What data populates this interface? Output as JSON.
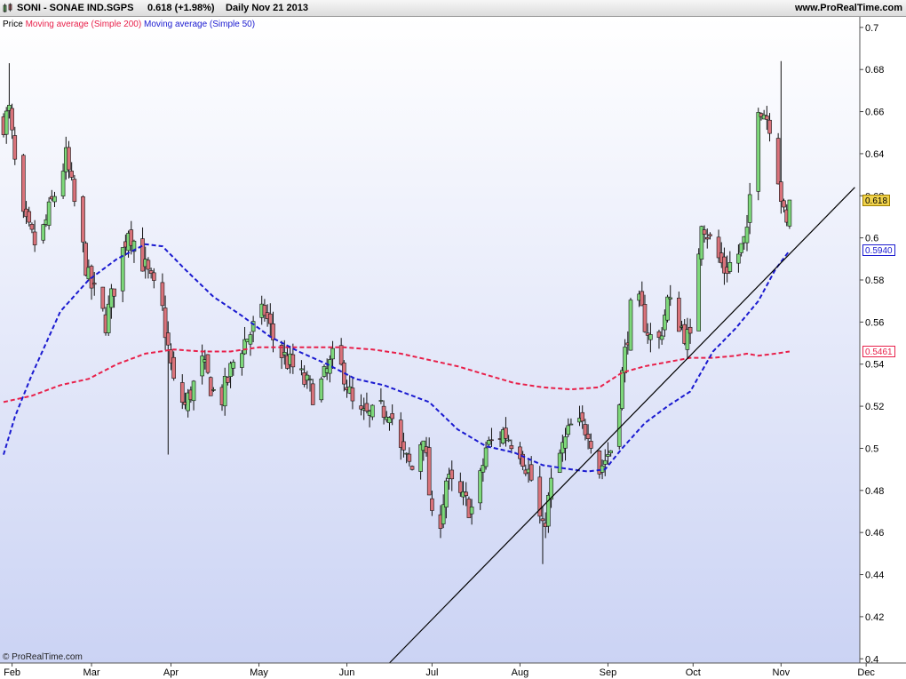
{
  "header": {
    "symbol": "SONI - SONAE IND.SGPS",
    "quote": "0.618 (+1.98%)",
    "period": "Daily  Nov 21 2013",
    "site": "www.ProRealTime.com"
  },
  "legend": {
    "price": "Price",
    "ma200": "Moving average (Simple 200)",
    "ma50": "Moving average (Simple 50)"
  },
  "watermark": "© ProRealTime.com",
  "colors": {
    "up": "#7dd87a",
    "down": "#d9727a",
    "ma200": "#e8204a",
    "ma50": "#1a1ad0",
    "trend": "#000000"
  },
  "tags": {
    "last": {
      "text": "0.618",
      "value": 0.618,
      "bg": "#f0d24a",
      "border": "#a08000"
    },
    "ma50": {
      "text": "0.5940",
      "value": 0.594,
      "bg": "#ffffff",
      "border": "#1a1ad0"
    },
    "ma200": {
      "text": "0.5461",
      "value": 0.5461,
      "bg": "#ffffff",
      "border": "#e8204a"
    }
  },
  "chart_data": {
    "type": "candlestick",
    "ylim": [
      0.398,
      0.705
    ],
    "y_ticks": [
      0.4,
      0.42,
      0.44,
      0.46,
      0.48,
      0.5,
      0.52,
      0.54,
      0.56,
      0.58,
      0.6,
      0.62,
      0.64,
      0.66,
      0.68,
      0.7
    ],
    "y_tick_labels": [
      "0.4",
      "0.42",
      "0.44",
      "0.46",
      "0.48",
      "0.5",
      "0.52",
      "0.54",
      "0.56",
      "0.58",
      "0.6",
      "0.62",
      "0.64",
      "0.66",
      "0.68",
      "0.7"
    ],
    "x_ticks": [
      {
        "label": "Feb",
        "day": 3
      },
      {
        "label": "Mar",
        "day": 31
      },
      {
        "label": "Apr",
        "day": 59
      },
      {
        "label": "May",
        "day": 90
      },
      {
        "label": "Jun",
        "day": 121
      },
      {
        "label": "Jul",
        "day": 151
      },
      {
        "label": "Aug",
        "day": 182
      },
      {
        "label": "Sep",
        "day": 213
      },
      {
        "label": "Oct",
        "day": 243
      },
      {
        "label": "Nov",
        "day": 274
      },
      {
        "label": "Dec",
        "day": 304
      }
    ],
    "candle_anchors": [
      {
        "day": 0,
        "close": 0.655
      },
      {
        "day": 2,
        "close": 0.66
      },
      {
        "day": 6,
        "close": 0.61
      },
      {
        "day": 12,
        "close": 0.595
      },
      {
        "day": 22,
        "close": 0.638
      },
      {
        "day": 30,
        "close": 0.58
      },
      {
        "day": 36,
        "close": 0.56
      },
      {
        "day": 44,
        "close": 0.605
      },
      {
        "day": 48,
        "close": 0.592
      },
      {
        "day": 56,
        "close": 0.565
      },
      {
        "day": 60,
        "close": 0.53
      },
      {
        "day": 64,
        "close": 0.52
      },
      {
        "day": 70,
        "close": 0.54
      },
      {
        "day": 76,
        "close": 0.52
      },
      {
        "day": 82,
        "close": 0.545
      },
      {
        "day": 92,
        "close": 0.565
      },
      {
        "day": 96,
        "close": 0.548
      },
      {
        "day": 104,
        "close": 0.535
      },
      {
        "day": 110,
        "close": 0.525
      },
      {
        "day": 116,
        "close": 0.542
      },
      {
        "day": 120,
        "close": 0.536
      },
      {
        "day": 124,
        "close": 0.515
      },
      {
        "day": 130,
        "close": 0.515
      },
      {
        "day": 136,
        "close": 0.52
      },
      {
        "day": 140,
        "close": 0.498
      },
      {
        "day": 144,
        "close": 0.49
      },
      {
        "day": 148,
        "close": 0.508
      },
      {
        "day": 152,
        "close": 0.45
      },
      {
        "day": 156,
        "close": 0.485
      },
      {
        "day": 162,
        "close": 0.475
      },
      {
        "day": 166,
        "close": 0.47
      },
      {
        "day": 170,
        "close": 0.5
      },
      {
        "day": 176,
        "close": 0.508
      },
      {
        "day": 182,
        "close": 0.5
      },
      {
        "day": 186,
        "close": 0.485
      },
      {
        "day": 190,
        "close": 0.46
      },
      {
        "day": 194,
        "close": 0.49
      },
      {
        "day": 200,
        "close": 0.51
      },
      {
        "day": 206,
        "close": 0.51
      },
      {
        "day": 210,
        "close": 0.49
      },
      {
        "day": 214,
        "close": 0.5
      },
      {
        "day": 218,
        "close": 0.535
      },
      {
        "day": 222,
        "close": 0.575
      },
      {
        "day": 226,
        "close": 0.56
      },
      {
        "day": 230,
        "close": 0.545
      },
      {
        "day": 234,
        "close": 0.57
      },
      {
        "day": 238,
        "close": 0.56
      },
      {
        "day": 242,
        "close": 0.55
      },
      {
        "day": 246,
        "close": 0.61
      },
      {
        "day": 250,
        "close": 0.595
      },
      {
        "day": 254,
        "close": 0.585
      },
      {
        "day": 258,
        "close": 0.59
      },
      {
        "day": 262,
        "close": 0.6
      },
      {
        "day": 264,
        "close": 0.64
      },
      {
        "day": 266,
        "close": 0.665
      },
      {
        "day": 270,
        "close": 0.655
      },
      {
        "day": 273,
        "close": 0.63
      },
      {
        "day": 275,
        "close": 0.61
      },
      {
        "day": 276,
        "close": 0.605
      },
      {
        "day": 277,
        "close": 0.618
      }
    ],
    "ma50": [
      {
        "day": 0,
        "value": 0.497
      },
      {
        "day": 4,
        "value": 0.515
      },
      {
        "day": 10,
        "value": 0.535
      },
      {
        "day": 20,
        "value": 0.565
      },
      {
        "day": 30,
        "value": 0.58
      },
      {
        "day": 40,
        "value": 0.59
      },
      {
        "day": 50,
        "value": 0.597
      },
      {
        "day": 56,
        "value": 0.596
      },
      {
        "day": 64,
        "value": 0.585
      },
      {
        "day": 74,
        "value": 0.572
      },
      {
        "day": 84,
        "value": 0.563
      },
      {
        "day": 94,
        "value": 0.553
      },
      {
        "day": 104,
        "value": 0.546
      },
      {
        "day": 114,
        "value": 0.54
      },
      {
        "day": 124,
        "value": 0.533
      },
      {
        "day": 134,
        "value": 0.53
      },
      {
        "day": 140,
        "value": 0.527
      },
      {
        "day": 150,
        "value": 0.522
      },
      {
        "day": 160,
        "value": 0.509
      },
      {
        "day": 170,
        "value": 0.501
      },
      {
        "day": 180,
        "value": 0.498
      },
      {
        "day": 190,
        "value": 0.492
      },
      {
        "day": 200,
        "value": 0.49
      },
      {
        "day": 206,
        "value": 0.489
      },
      {
        "day": 212,
        "value": 0.49
      },
      {
        "day": 218,
        "value": 0.5
      },
      {
        "day": 226,
        "value": 0.512
      },
      {
        "day": 234,
        "value": 0.52
      },
      {
        "day": 242,
        "value": 0.527
      },
      {
        "day": 250,
        "value": 0.546
      },
      {
        "day": 258,
        "value": 0.557
      },
      {
        "day": 266,
        "value": 0.57
      },
      {
        "day": 272,
        "value": 0.585
      },
      {
        "day": 277,
        "value": 0.594
      }
    ],
    "ma200": [
      {
        "day": 0,
        "value": 0.522
      },
      {
        "day": 10,
        "value": 0.525
      },
      {
        "day": 20,
        "value": 0.53
      },
      {
        "day": 30,
        "value": 0.533
      },
      {
        "day": 40,
        "value": 0.54
      },
      {
        "day": 50,
        "value": 0.545
      },
      {
        "day": 60,
        "value": 0.547
      },
      {
        "day": 70,
        "value": 0.546
      },
      {
        "day": 80,
        "value": 0.546
      },
      {
        "day": 90,
        "value": 0.548
      },
      {
        "day": 100,
        "value": 0.548
      },
      {
        "day": 110,
        "value": 0.548
      },
      {
        "day": 120,
        "value": 0.548
      },
      {
        "day": 130,
        "value": 0.547
      },
      {
        "day": 140,
        "value": 0.545
      },
      {
        "day": 150,
        "value": 0.542
      },
      {
        "day": 160,
        "value": 0.539
      },
      {
        "day": 170,
        "value": 0.535
      },
      {
        "day": 180,
        "value": 0.531
      },
      {
        "day": 190,
        "value": 0.529
      },
      {
        "day": 200,
        "value": 0.528
      },
      {
        "day": 210,
        "value": 0.529
      },
      {
        "day": 218,
        "value": 0.536
      },
      {
        "day": 226,
        "value": 0.539
      },
      {
        "day": 234,
        "value": 0.541
      },
      {
        "day": 242,
        "value": 0.543
      },
      {
        "day": 250,
        "value": 0.543
      },
      {
        "day": 258,
        "value": 0.544
      },
      {
        "day": 262,
        "value": 0.545
      },
      {
        "day": 266,
        "value": 0.544
      },
      {
        "day": 272,
        "value": 0.545
      },
      {
        "day": 277,
        "value": 0.546
      }
    ],
    "trendline": [
      {
        "day": 136,
        "value": 0.398
      },
      {
        "day": 300,
        "value": 0.624
      }
    ]
  }
}
